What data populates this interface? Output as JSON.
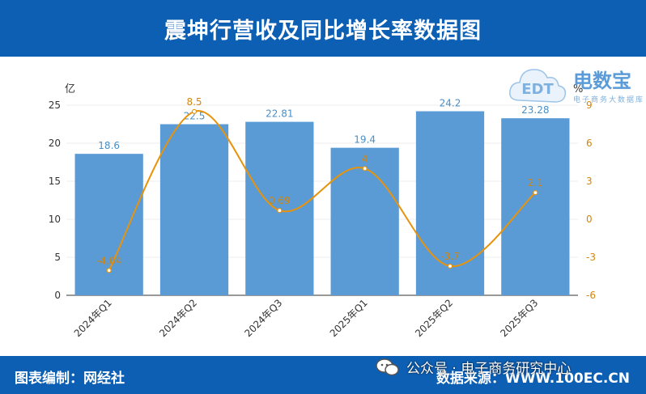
{
  "header": {
    "title": "震坤行营收及同比增长率数据图"
  },
  "footer": {
    "left": "图表编制：网经社",
    "right": "数据来源：WWW.100EC.CN",
    "wechat": "公众号 · 电子商务研究中心"
  },
  "logo": {
    "name": "电数宝",
    "tagline": "电子商务大数据库",
    "badge": "EDT"
  },
  "colors": {
    "header_bg": "#0d5fb4",
    "bar": "#5b9bd5",
    "line": "#e8930c",
    "bar_label": "#4a8fc6",
    "line_label": "#d4860b"
  },
  "chart_data": {
    "type": "bar",
    "categories": [
      "2024年Q1",
      "2024年Q2",
      "2024年Q3",
      "2025年Q1",
      "2025年Q2",
      "2025年Q3"
    ],
    "series": [
      {
        "type": "bar",
        "values": [
          18.6,
          22.5,
          22.81,
          19.4,
          24.2,
          23.28
        ],
        "labels": [
          "18.6",
          "22.5",
          "22.81",
          "19.4",
          "24.2",
          "23.28"
        ]
      },
      {
        "type": "line",
        "values": [
          -4.04,
          8.5,
          0.69,
          4,
          -3.7,
          2.1
        ],
        "labels": [
          "-4.04",
          "8.5",
          "0.69",
          "4",
          "-3.7",
          "2.1"
        ]
      }
    ],
    "ylabel_left": "亿",
    "ylabel_right": "%",
    "ylim_left": [
      0,
      25
    ],
    "ylim_right": [
      -6,
      9
    ],
    "yticks_left": [
      "0",
      "5",
      "10",
      "15",
      "20",
      "25"
    ],
    "yticks_right": [
      "-6",
      "-3",
      "0",
      "3",
      "6",
      "9"
    ],
    "grid": true
  }
}
